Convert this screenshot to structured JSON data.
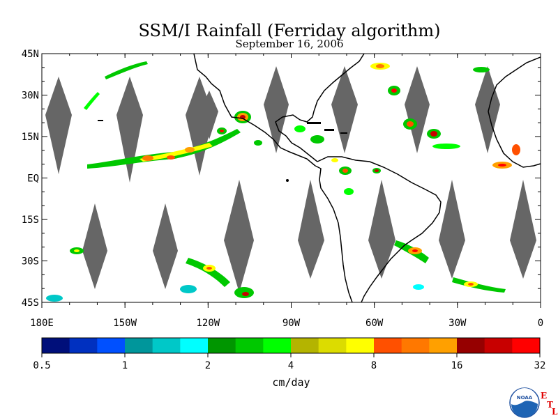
{
  "title": "SSM/I Rainfall (Ferriday algorithm)",
  "subtitle": "September 16, 2006",
  "map": {
    "lat_labels": [
      "45N",
      "30N",
      "15N",
      "EQ",
      "15S",
      "30S",
      "45S"
    ],
    "lat_values": [
      45,
      30,
      15,
      0,
      -15,
      -30,
      -45
    ],
    "lon_labels": [
      "180E",
      "150W",
      "120W",
      "90W",
      "60W",
      "30W",
      "0"
    ],
    "lon_values": [
      -180,
      -150,
      -120,
      -90,
      -60,
      -30,
      0
    ],
    "lon_range": [
      -180,
      0
    ],
    "lat_range": [
      -45,
      45
    ],
    "swath_gap_color": "#666666",
    "coastline_color": "#000000"
  },
  "colorbar": {
    "tick_labels": [
      "0.5",
      "1",
      "2",
      "4",
      "8",
      "16",
      "32"
    ],
    "colors": [
      "#000f7a",
      "#0030c0",
      "#0050ff",
      "#00969b",
      "#00c8c8",
      "#00ffff",
      "#009600",
      "#00c800",
      "#00ff00",
      "#b4b400",
      "#dcdc00",
      "#ffff00",
      "#ff5000",
      "#ff7800",
      "#ffa000",
      "#960000",
      "#c80000",
      "#ff0000"
    ],
    "units": "cm/day"
  },
  "logo": {
    "name": "noaa-logo",
    "text": "NOAA",
    "side_letters": [
      "E",
      "T",
      "L"
    ]
  }
}
